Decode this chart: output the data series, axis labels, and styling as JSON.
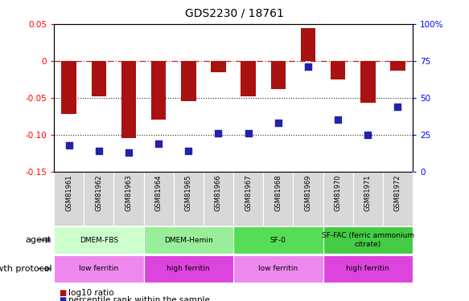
{
  "title": "GDS2230 / 18761",
  "samples": [
    "GSM81961",
    "GSM81962",
    "GSM81963",
    "GSM81964",
    "GSM81965",
    "GSM81966",
    "GSM81967",
    "GSM81968",
    "GSM81969",
    "GSM81970",
    "GSM81971",
    "GSM81972"
  ],
  "log10_ratio": [
    -0.072,
    -0.048,
    -0.105,
    -0.08,
    -0.055,
    -0.015,
    -0.048,
    -0.038,
    0.045,
    -0.025,
    -0.057,
    -0.013
  ],
  "percentile_rank": [
    18,
    14,
    13,
    19,
    14,
    26,
    26,
    33,
    71,
    35,
    25,
    44
  ],
  "ylim_left": [
    -0.15,
    0.05
  ],
  "ylim_right": [
    0,
    100
  ],
  "agent_groups": [
    {
      "label": "DMEM-FBS",
      "start": 0,
      "end": 3,
      "color": "#ccffcc"
    },
    {
      "label": "DMEM-Hemin",
      "start": 3,
      "end": 6,
      "color": "#99ee99"
    },
    {
      "label": "SF-0",
      "start": 6,
      "end": 9,
      "color": "#55dd55"
    },
    {
      "label": "SF-FAC (ferric ammonium\ncitrate)",
      "start": 9,
      "end": 12,
      "color": "#44cc44"
    }
  ],
  "growth_groups": [
    {
      "label": "low ferritin",
      "start": 0,
      "end": 3,
      "color": "#ee88ee"
    },
    {
      "label": "high ferritin",
      "start": 3,
      "end": 6,
      "color": "#dd44dd"
    },
    {
      "label": "low ferritin",
      "start": 6,
      "end": 9,
      "color": "#ee88ee"
    },
    {
      "label": "high ferritin",
      "start": 9,
      "end": 12,
      "color": "#dd44dd"
    }
  ],
  "bar_color": "#aa1111",
  "dot_color": "#2222aa",
  "hline_color": "#cc2222",
  "dotted_color": "#222222",
  "bar_width": 0.5,
  "dot_size": 28,
  "left_yticks": [
    0.05,
    0.0,
    -0.05,
    -0.1,
    -0.15
  ],
  "left_yticklabels": [
    "0.05",
    "0",
    "-0.05",
    "-0.10",
    "-0.15"
  ],
  "right_yticks": [
    0,
    25,
    50,
    75,
    100
  ],
  "right_yticklabels": [
    "0",
    "25",
    "50",
    "75",
    "100%"
  ]
}
